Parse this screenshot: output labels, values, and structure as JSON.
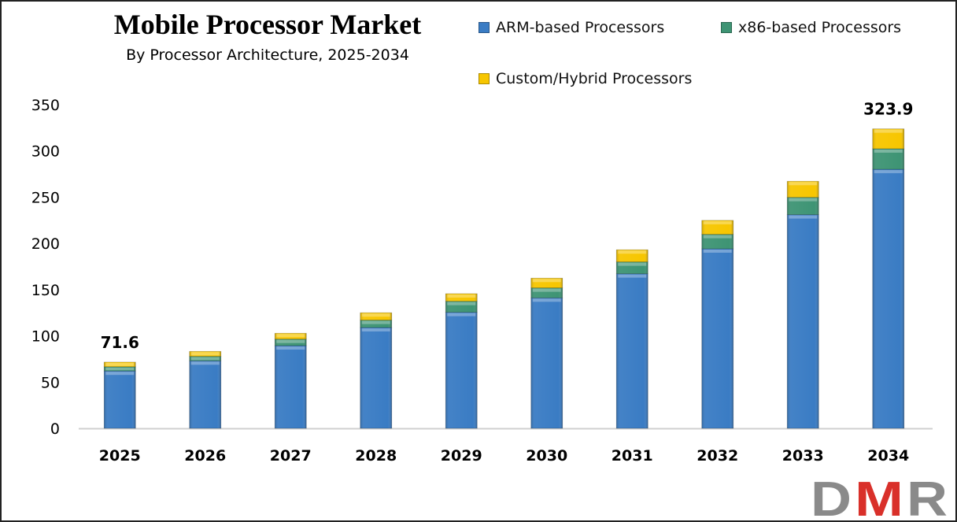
{
  "chart_data": {
    "type": "bar",
    "stacked": true,
    "title": "Mobile Processor Market",
    "subtitle": "By Processor Architecture, 2025-2034",
    "xlabel": "",
    "ylabel": "",
    "ylim": [
      0,
      350
    ],
    "yticks": [
      0,
      50,
      100,
      150,
      200,
      250,
      300,
      350
    ],
    "grid": false,
    "legend_position": "top-right",
    "categories": [
      "2025",
      "2026",
      "2027",
      "2028",
      "2029",
      "2030",
      "2031",
      "2032",
      "2033",
      "2034"
    ],
    "series": [
      {
        "name": "ARM-based Processors",
        "color": "#3a7cc4",
        "values": [
          62.0,
          73.0,
          89.4,
          109.0,
          125.5,
          141.1,
          167.2,
          194.2,
          231.1,
          280.2
        ]
      },
      {
        "name": "x86-based Processors",
        "color": "#3e9474",
        "values": [
          4.6,
          4.8,
          7.1,
          8.0,
          11.9,
          10.8,
          12.8,
          15.6,
          18.7,
          22.2
        ]
      },
      {
        "name": "Custom/Hybrid Processors",
        "color": "#f7c600",
        "values": [
          5.0,
          5.4,
          6.3,
          8.0,
          8.2,
          10.5,
          13.1,
          15.1,
          17.4,
          21.5
        ]
      }
    ],
    "data_labels": [
      {
        "category": "2025",
        "text": "71.6"
      },
      {
        "category": "2034",
        "text": "323.9"
      }
    ]
  },
  "logo": {
    "text": "DMR"
  }
}
